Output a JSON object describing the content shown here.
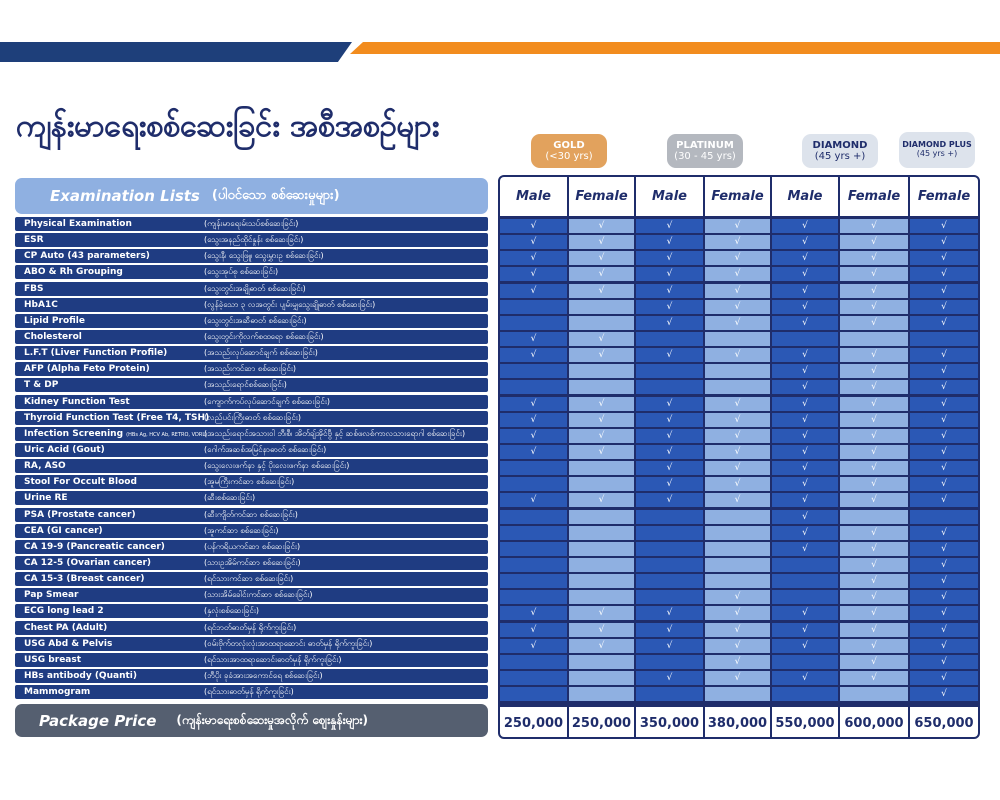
{
  "title": "ကျန်းမာရေးစစ်ဆေးခြင်း အစီအစဉ်များ",
  "tiers": [
    {
      "name": "GOLD",
      "age": "(<30 yrs)"
    },
    {
      "name": "PLATINUM",
      "age": "(30 - 45 yrs)"
    },
    {
      "name": "DIAMOND",
      "age": "(45 yrs +)"
    },
    {
      "name": "DIAMOND PLUS",
      "age": "(45 yrs +)"
    }
  ],
  "exam_header": {
    "en": "Examination Lists",
    "mm": "(ပါဝင်သော စစ်ဆေးမှုများ)"
  },
  "columns": [
    "Male",
    "Female",
    "Male",
    "Female",
    "Male",
    "Female",
    "Female"
  ],
  "check_mark": "√",
  "rows": [
    {
      "en": "Physical Examination",
      "mm": "(ကျန်းမာရေးမ်းသပ်စစ်ဆေးခြင်း)",
      "checks": [
        1,
        1,
        1,
        1,
        1,
        1,
        1
      ]
    },
    {
      "en": "ESR",
      "mm": "(သွေးအနည်ထိုင်နှုန်း စစ်ဆေးခြင်း)",
      "checks": [
        1,
        1,
        1,
        1,
        1,
        1,
        1
      ]
    },
    {
      "en": "CP Auto (43 parameters)",
      "mm": "(သွေးနီ၊ သွေးဖြူ၊ သွေးမွှားဥ စစ်ဆေးခြင်း)",
      "checks": [
        1,
        1,
        1,
        1,
        1,
        1,
        1
      ]
    },
    {
      "en": "ABO & Rh Grouping",
      "mm": "(သွေးအုပ်စု စစ်ဆေးခြင်း)",
      "checks": [
        1,
        1,
        1,
        1,
        1,
        1,
        1
      ]
    },
    {
      "en": "FBS",
      "mm": "(သွေးတွင်းအချိုဓာတ် စစ်ဆေးခြင်း)",
      "checks": [
        1,
        1,
        1,
        1,
        1,
        1,
        1
      ]
    },
    {
      "en": "HbA1C",
      "mm": "(လွန်ခဲ့သော ၃ လအတွင်း ပျမ်းမျှသွေးချိုဓာတ် စစ်ဆေးခြင်း)",
      "checks": [
        0,
        0,
        1,
        1,
        1,
        1,
        1
      ]
    },
    {
      "en": "Lipid Profile",
      "mm": "(သွေးတွင်းအဆီဓာတ် စစ်ဆေးခြင်း)",
      "checks": [
        0,
        0,
        1,
        1,
        1,
        1,
        1
      ]
    },
    {
      "en": "Cholesterol",
      "mm": "(သွေးတွင်းကိုလက်စထရော စစ်ဆေးခြင်း)",
      "checks": [
        1,
        1,
        0,
        0,
        0,
        0,
        0
      ]
    },
    {
      "en": "L.F.T (Liver Function Profile)",
      "mm": "(အသည်းလုပ်ဆောင်ချက် စစ်ဆေးခြင်း)",
      "checks": [
        1,
        1,
        1,
        1,
        1,
        1,
        1
      ]
    },
    {
      "en": "AFP (Alpha Feto Protein)",
      "mm": "(အသည်းကင်ဆာ စစ်ဆေးခြင်း)",
      "checks": [
        0,
        0,
        0,
        0,
        1,
        1,
        1
      ]
    },
    {
      "en": "T & DP",
      "mm": "(အသည်းရောင်စစ်ဆေးခြင်း)",
      "checks": [
        0,
        0,
        0,
        0,
        1,
        1,
        1
      ]
    },
    {
      "en": "Kidney Function Test",
      "mm": "(ကျောက်ကပ်လုပ်ဆောင်ချက် စစ်ဆေးခြင်း)",
      "checks": [
        1,
        1,
        1,
        1,
        1,
        1,
        1
      ]
    },
    {
      "en": "Thyroid Function Test (Free T4, TSH)",
      "mm": "(လည်ပင်းကြီးဓာတ် စစ်ဆေးခြင်း)",
      "checks": [
        1,
        1,
        1,
        1,
        1,
        1,
        1
      ]
    },
    {
      "en": "Infection Screening",
      "small": "(HBs Ag, HCV Ab, RETRO, VDRL)",
      "mm": "(အသည်းရောင်အသားဝါ ဘီ၊စီ၊ အိတ်ချ်အိုင်ဗွီ နှင့် ဆစ်ဖလစ်ကာလသားရောဂါ စစ်ဆေးခြင်း)",
      "checks": [
        1,
        1,
        1,
        1,
        1,
        1,
        1
      ]
    },
    {
      "en": "Uric Acid (Gout)",
      "mm": "(ဂေါက်အဆစ်အမြင်နာဓာတ် စစ်ဆေးခြင်း)",
      "checks": [
        1,
        1,
        1,
        1,
        1,
        1,
        1
      ]
    },
    {
      "en": "RA, ASO",
      "mm": "(သွေးလေးဖက်နာ နှင့် ပိုးလေးဖက်နာ စစ်ဆေးခြင်း)",
      "checks": [
        0,
        0,
        1,
        1,
        1,
        1,
        1
      ]
    },
    {
      "en": "Stool For Occult Blood",
      "mm": "(အူမကြီးကင်ဆာ စစ်ဆေးခြင်း)",
      "checks": [
        0,
        0,
        1,
        1,
        1,
        1,
        1
      ]
    },
    {
      "en": "Urine RE",
      "mm": "(ဆီးစစ်ဆေးခြင်း)",
      "checks": [
        1,
        1,
        1,
        1,
        1,
        1,
        1
      ]
    },
    {
      "en": "PSA (Prostate cancer)",
      "mm": "(ဆီးကျိတ်ကင်ဆာ စစ်ဆေးခြင်း)",
      "checks": [
        0,
        0,
        0,
        0,
        1,
        0,
        0
      ]
    },
    {
      "en": "CEA (GI cancer)",
      "mm": "(အူကင်ဆာ စစ်ဆေးခြင်း)",
      "checks": [
        0,
        0,
        0,
        0,
        1,
        1,
        1
      ]
    },
    {
      "en": "CA 19-9 (Pancreatic cancer)",
      "mm": "(ပန်ကရိယကင်ဆာ စစ်ဆေးခြင်း)",
      "checks": [
        0,
        0,
        0,
        0,
        1,
        1,
        1
      ]
    },
    {
      "en": "CA 12-5 (Ovarian cancer)",
      "mm": "(သားဥအိမ်ကင်ဆာ စစ်ဆေးခြင်း)",
      "checks": [
        0,
        0,
        0,
        0,
        0,
        1,
        1
      ]
    },
    {
      "en": "CA 15-3 (Breast cancer)",
      "mm": "(ရင်သားကင်ဆာ စစ်ဆေးခြင်း)",
      "checks": [
        0,
        0,
        0,
        0,
        0,
        1,
        1
      ]
    },
    {
      "en": "Pap Smear",
      "mm": "(သားအိမ်ခေါင်းကင်ဆာ စစ်ဆေးခြင်း)",
      "checks": [
        0,
        0,
        0,
        1,
        0,
        1,
        1
      ]
    },
    {
      "en": "ECG long lead 2",
      "mm": "(နှလုံးစစ်ဆေးခြင်း)",
      "checks": [
        1,
        1,
        1,
        1,
        1,
        1,
        1
      ]
    },
    {
      "en": "Chest PA (Adult)",
      "mm": "(ရင်ဘတ်ဓာတ်မှန် ရိုက်ကူးခြင်း)",
      "checks": [
        1,
        1,
        1,
        1,
        1,
        1,
        1
      ]
    },
    {
      "en": "USG Abd & Pelvis",
      "mm": "(ဝမ်းဗိုက်တလုံးလုံးအာထရာဆောင်း ဓာတ်မှန် ရိုက်ကူးခြင်း)",
      "checks": [
        1,
        1,
        1,
        1,
        1,
        1,
        1
      ]
    },
    {
      "en": "USG breast",
      "mm": "(ရင်သားအာထရာဆောင်းဓာတ်မှန် ရိုက်ကူးခြင်း)",
      "checks": [
        0,
        0,
        0,
        1,
        0,
        1,
        1
      ]
    },
    {
      "en": "HBs antibody (Quanti)",
      "mm": "(ဘီပိုး ခုခံအားအကောင်ရေ စစ်ဆေးခြင်း)",
      "checks": [
        0,
        0,
        1,
        1,
        1,
        1,
        1
      ]
    },
    {
      "en": "Mammogram",
      "mm": "(ရင်သားဓာတ်မှန် ရိုက်ကူးခြင်း)",
      "checks": [
        0,
        0,
        0,
        0,
        0,
        0,
        1
      ]
    }
  ],
  "price_label": {
    "en": "Package Price",
    "mm": "(ကျန်းမာရေးစစ်ဆေးမှုအလိုက် ဈေးနှုန်းများ)"
  },
  "prices": [
    "250,000",
    "250,000",
    "350,000",
    "380,000",
    "550,000",
    "600,000",
    "650,000"
  ],
  "colors": {
    "navy": "#1f2d6b",
    "row_blue": "#1f3c82",
    "cell_dark": "#2b58b5",
    "cell_light": "#8fb0e1",
    "orange": "#f28c1e",
    "gold": "#e2a25d",
    "platinum": "#b4b8bf",
    "diamond": "#dde3ec",
    "price_bg": "#555f70"
  }
}
